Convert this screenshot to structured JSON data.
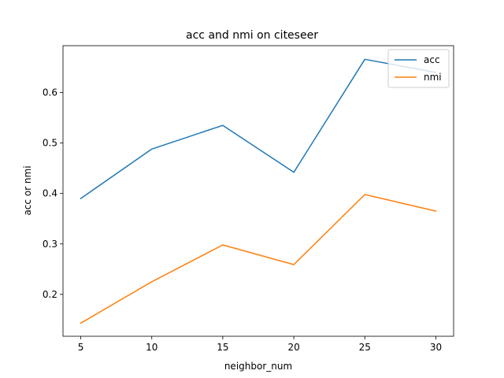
{
  "chart_data": {
    "type": "line",
    "title": "acc and nmi on citeseer",
    "xlabel": "neighbor_num",
    "ylabel": "acc or nmi",
    "x": [
      5,
      10,
      15,
      20,
      25,
      30
    ],
    "xlim": [
      3.75,
      31.25
    ],
    "ylim": [
      0.117,
      0.693
    ],
    "xticks": [
      5,
      10,
      15,
      20,
      25,
      30
    ],
    "xtick_labels": [
      "5",
      "10",
      "15",
      "20",
      "25",
      "30"
    ],
    "yticks": [
      0.2,
      0.3,
      0.4,
      0.5,
      0.6
    ],
    "ytick_labels": [
      "0.2",
      "0.3",
      "0.4",
      "0.5",
      "0.6"
    ],
    "grid": false,
    "legend": "top-right",
    "series": [
      {
        "name": "acc",
        "color": "#1f77b4",
        "values": [
          0.39,
          0.488,
          0.535,
          0.442,
          0.666,
          0.64
        ]
      },
      {
        "name": "nmi",
        "color": "#ff7f0e",
        "values": [
          0.143,
          0.225,
          0.298,
          0.259,
          0.398,
          0.365
        ]
      }
    ]
  }
}
